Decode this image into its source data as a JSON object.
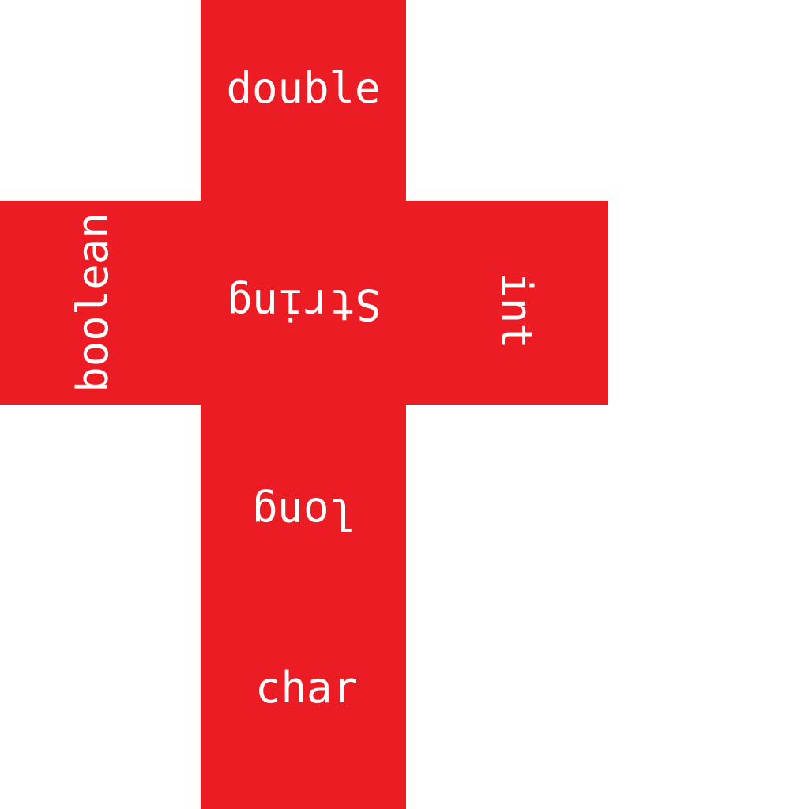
{
  "colors": {
    "background": "#ffffff",
    "face": "#ec1c24",
    "text": "#ffffff"
  },
  "net": {
    "top": "double",
    "left": "boolean",
    "center": "String",
    "right": "int",
    "below": "long",
    "bottom": "char"
  }
}
